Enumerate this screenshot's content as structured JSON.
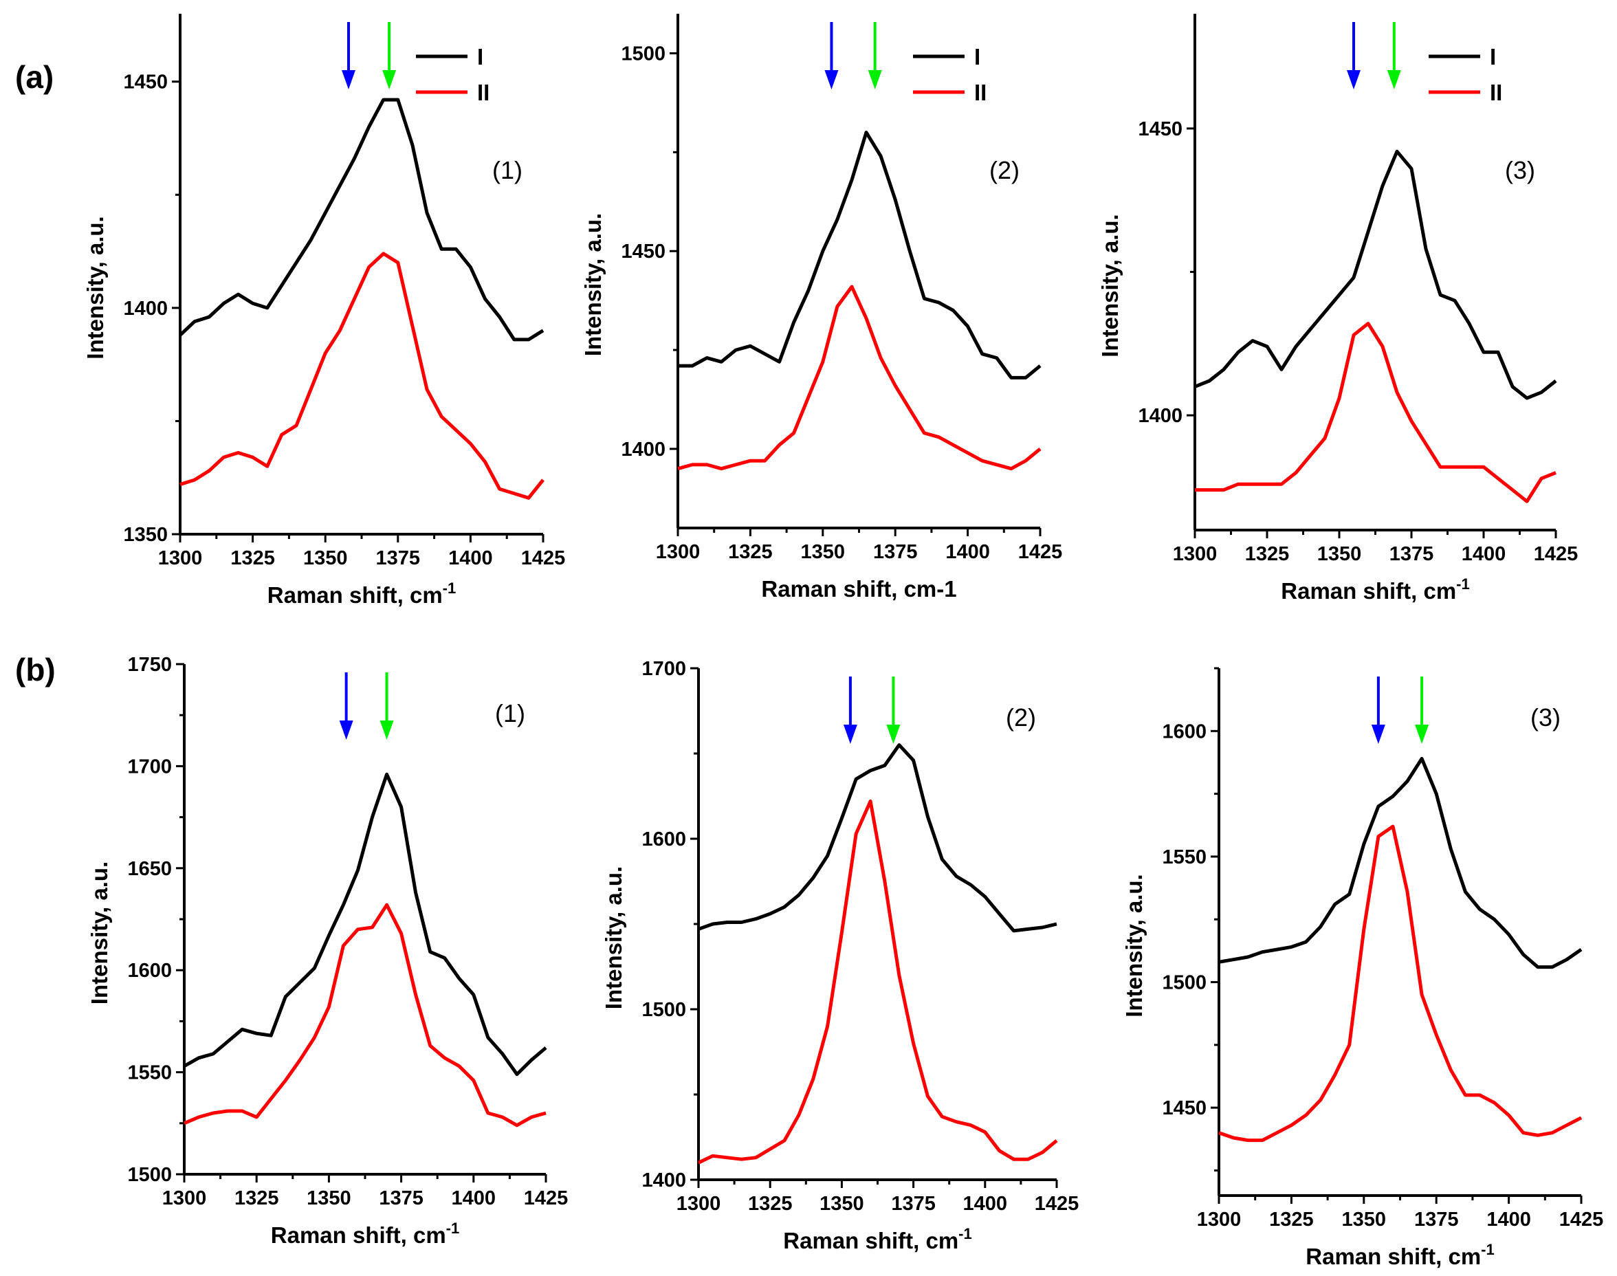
{
  "figure": {
    "row_labels": [
      "(a)",
      "(b)"
    ]
  },
  "colors": {
    "series_I": "#000000",
    "series_II": "#ff0000",
    "arrow_blue": "#0000ff",
    "arrow_green": "#00ee00"
  },
  "chart_data": [
    {
      "type": "line",
      "row": "a",
      "tag": "(1)",
      "xlabel": "Raman shift, cm",
      "xlabel_sup": "-1",
      "ylabel": "Intensity, a.u.",
      "xlim": [
        1300,
        1425
      ],
      "ylim": [
        1350,
        1465
      ],
      "xticks": [
        "1300",
        "1325",
        "1350",
        "1375",
        "1400",
        "1425"
      ],
      "yticks": [
        "1350",
        "1400",
        "1450"
      ],
      "legend": [
        "I",
        "II"
      ],
      "arrows": {
        "blue": 1358,
        "green": 1372
      },
      "x": [
        1300,
        1305,
        1310,
        1315,
        1320,
        1325,
        1330,
        1335,
        1340,
        1345,
        1350,
        1355,
        1360,
        1365,
        1370,
        1375,
        1380,
        1385,
        1390,
        1395,
        1400,
        1405,
        1410,
        1415,
        1420,
        1425
      ],
      "series": [
        {
          "name": "I",
          "values": [
            1394,
            1397,
            1398,
            1401,
            1403,
            1401,
            1400,
            1405,
            1410,
            1415,
            1421,
            1427,
            1433,
            1440,
            1446,
            1446,
            1436,
            1421,
            1413,
            1413,
            1409,
            1402,
            1398,
            1393,
            1393,
            1395
          ]
        },
        {
          "name": "II",
          "values": [
            1361,
            1362,
            1364,
            1367,
            1368,
            1367,
            1365,
            1372,
            1374,
            1382,
            1390,
            1395,
            1402,
            1409,
            1412,
            1410,
            1396,
            1382,
            1376,
            1373,
            1370,
            1366,
            1360,
            1359,
            1358,
            1362
          ]
        }
      ]
    },
    {
      "type": "line",
      "row": "a",
      "tag": "(2)",
      "xlabel": "Raman shift, cm-1",
      "xlabel_sup": "",
      "ylabel": "Intensity, a.u.",
      "xlim": [
        1300,
        1425
      ],
      "ylim": [
        1380,
        1510
      ],
      "xticks": [
        "1300",
        "1325",
        "1350",
        "1375",
        "1400",
        "1425"
      ],
      "yticks": [
        "1400",
        "1450",
        "1500"
      ],
      "legend": [
        "I",
        "II"
      ],
      "arrows": {
        "blue": 1353,
        "green": 1368
      },
      "x": [
        1300,
        1305,
        1310,
        1315,
        1320,
        1325,
        1330,
        1335,
        1340,
        1345,
        1350,
        1355,
        1360,
        1365,
        1370,
        1375,
        1380,
        1385,
        1390,
        1395,
        1400,
        1405,
        1410,
        1415,
        1420,
        1425
      ],
      "series": [
        {
          "name": "I",
          "values": [
            1421,
            1421,
            1423,
            1422,
            1425,
            1426,
            1424,
            1422,
            1432,
            1440,
            1450,
            1458,
            1468,
            1480,
            1474,
            1463,
            1450,
            1438,
            1437,
            1435,
            1431,
            1424,
            1423,
            1418,
            1418,
            1421
          ]
        },
        {
          "name": "II",
          "values": [
            1395,
            1396,
            1396,
            1395,
            1396,
            1397,
            1397,
            1401,
            1404,
            1413,
            1422,
            1436,
            1441,
            1433,
            1423,
            1416,
            1410,
            1404,
            1403,
            1401,
            1399,
            1397,
            1396,
            1395,
            1397,
            1400
          ]
        }
      ]
    },
    {
      "type": "line",
      "row": "a",
      "tag": "(3)",
      "xlabel": "Raman shift, cm",
      "xlabel_sup": "-1",
      "ylabel": "Intensity, a.u.",
      "xlim": [
        1300,
        1425
      ],
      "ylim": [
        1380,
        1470
      ],
      "xticks": [
        "1300",
        "1325",
        "1350",
        "1375",
        "1400",
        "1425"
      ],
      "yticks": [
        "1400",
        "1450"
      ],
      "legend": [
        "I",
        "II"
      ],
      "arrows": {
        "blue": 1355,
        "green": 1369
      },
      "x": [
        1300,
        1305,
        1310,
        1315,
        1320,
        1325,
        1330,
        1335,
        1340,
        1345,
        1350,
        1355,
        1360,
        1365,
        1370,
        1375,
        1380,
        1385,
        1390,
        1395,
        1400,
        1405,
        1410,
        1415,
        1420,
        1425
      ],
      "series": [
        {
          "name": "I",
          "values": [
            1405,
            1406,
            1408,
            1411,
            1413,
            1412,
            1408,
            1412,
            1415,
            1418,
            1421,
            1424,
            1432,
            1440,
            1446,
            1443,
            1429,
            1421,
            1420,
            1416,
            1411,
            1411,
            1405,
            1403,
            1404,
            1406
          ]
        },
        {
          "name": "II",
          "values": [
            1387,
            1387,
            1387,
            1388,
            1388,
            1388,
            1388,
            1390,
            1393,
            1396,
            1403,
            1414,
            1416,
            1412,
            1404,
            1399,
            1395,
            1391,
            1391,
            1391,
            1391,
            1389,
            1387,
            1385,
            1389,
            1390
          ]
        }
      ]
    },
    {
      "type": "line",
      "row": "b",
      "tag": "(1)",
      "xlabel": "Raman shift, cm",
      "xlabel_sup": "-1",
      "ylabel": "Intensity, a.u.",
      "xlim": [
        1300,
        1425
      ],
      "ylim": [
        1500,
        1750
      ],
      "xticks": [
        "1300",
        "1325",
        "1350",
        "1375",
        "1400",
        "1425"
      ],
      "yticks": [
        "1500",
        "1550",
        "1600",
        "1650",
        "1700",
        "1750"
      ],
      "legend": [],
      "arrows": {
        "blue": 1356,
        "green": 1370
      },
      "x": [
        1300,
        1305,
        1310,
        1315,
        1320,
        1325,
        1330,
        1335,
        1340,
        1345,
        1350,
        1355,
        1360,
        1365,
        1370,
        1375,
        1380,
        1385,
        1390,
        1395,
        1400,
        1405,
        1410,
        1415,
        1420,
        1425
      ],
      "series": [
        {
          "name": "I",
          "values": [
            1553,
            1557,
            1559,
            1565,
            1571,
            1569,
            1568,
            1587,
            1594,
            1601,
            1617,
            1632,
            1649,
            1675,
            1696,
            1680,
            1638,
            1609,
            1606,
            1596,
            1588,
            1567,
            1559,
            1549,
            1556,
            1562
          ]
        },
        {
          "name": "II",
          "values": [
            1525,
            1528,
            1530,
            1531,
            1531,
            1528,
            1537,
            1546,
            1556,
            1567,
            1582,
            1612,
            1620,
            1621,
            1632,
            1618,
            1588,
            1563,
            1557,
            1553,
            1546,
            1530,
            1528,
            1524,
            1528,
            1530
          ]
        }
      ]
    },
    {
      "type": "line",
      "row": "b",
      "tag": "(2)",
      "xlabel": "Raman shift, cm",
      "xlabel_sup": "-1",
      "ylabel": "Intensity, a.u.",
      "xlim": [
        1300,
        1425
      ],
      "ylim": [
        1400,
        1700
      ],
      "xticks": [
        "1300",
        "1325",
        "1350",
        "1375",
        "1400",
        "1425"
      ],
      "yticks": [
        "1400",
        "1500",
        "1600",
        "1700"
      ],
      "legend": [],
      "arrows": {
        "blue": 1353,
        "green": 1368
      },
      "x": [
        1300,
        1305,
        1310,
        1315,
        1320,
        1325,
        1330,
        1335,
        1340,
        1345,
        1350,
        1355,
        1360,
        1365,
        1370,
        1375,
        1380,
        1385,
        1390,
        1395,
        1400,
        1405,
        1410,
        1415,
        1420,
        1425
      ],
      "series": [
        {
          "name": "I",
          "values": [
            1547,
            1550,
            1551,
            1551,
            1553,
            1556,
            1560,
            1567,
            1577,
            1590,
            1612,
            1635,
            1640,
            1643,
            1655,
            1646,
            1613,
            1588,
            1578,
            1573,
            1566,
            1556,
            1546,
            1547,
            1548,
            1550
          ]
        },
        {
          "name": "II",
          "values": [
            1410,
            1414,
            1413,
            1412,
            1413,
            1418,
            1423,
            1438,
            1459,
            1490,
            1545,
            1603,
            1622,
            1575,
            1520,
            1480,
            1449,
            1437,
            1434,
            1432,
            1428,
            1417,
            1412,
            1412,
            1416,
            1423
          ]
        }
      ]
    },
    {
      "type": "line",
      "row": "b",
      "tag": "(3)",
      "xlabel": "Raman shift, cm",
      "xlabel_sup": "-1",
      "ylabel": "Intensity, a.u.",
      "xlim": [
        1300,
        1425
      ],
      "ylim": [
        1415,
        1625
      ],
      "xticks": [
        "1300",
        "1325",
        "1350",
        "1375",
        "1400",
        "1425"
      ],
      "yticks": [
        "1450",
        "1500",
        "1550",
        "1600"
      ],
      "legend": [],
      "arrows": {
        "blue": 1355,
        "green": 1370
      },
      "x": [
        1300,
        1305,
        1310,
        1315,
        1320,
        1325,
        1330,
        1335,
        1340,
        1345,
        1350,
        1355,
        1360,
        1365,
        1370,
        1375,
        1380,
        1385,
        1390,
        1395,
        1400,
        1405,
        1410,
        1415,
        1420,
        1425
      ],
      "series": [
        {
          "name": "I",
          "values": [
            1508,
            1509,
            1510,
            1512,
            1513,
            1514,
            1516,
            1522,
            1531,
            1535,
            1555,
            1570,
            1574,
            1580,
            1589,
            1575,
            1553,
            1536,
            1529,
            1525,
            1519,
            1511,
            1506,
            1506,
            1509,
            1513
          ]
        },
        {
          "name": "II",
          "values": [
            1440,
            1438,
            1437,
            1437,
            1440,
            1443,
            1447,
            1453,
            1463,
            1475,
            1521,
            1558,
            1562,
            1536,
            1495,
            1479,
            1465,
            1455,
            1455,
            1452,
            1447,
            1440,
            1439,
            1440,
            1443,
            1446
          ]
        }
      ]
    }
  ]
}
